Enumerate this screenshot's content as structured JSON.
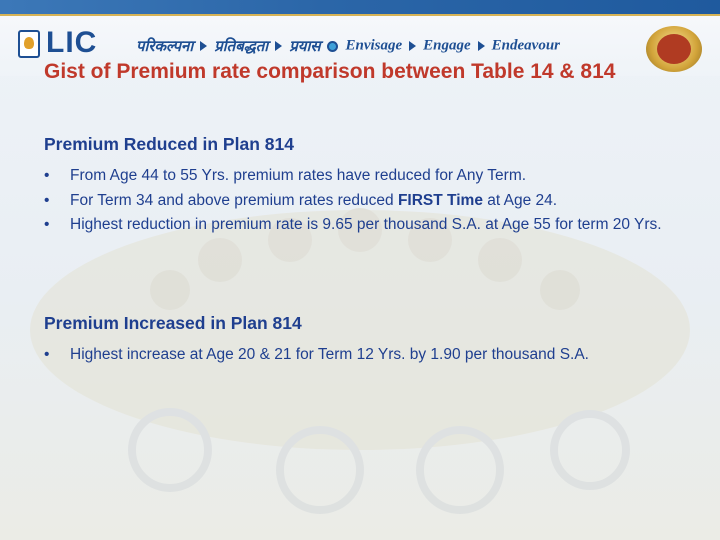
{
  "header": {
    "logo_text": "LIC",
    "tagline": [
      "परिकल्पना",
      "प्रतिबद्धता",
      "प्रयास",
      "Envisage",
      "Engage",
      "Endeavour"
    ],
    "brand_color": "#1e4f93",
    "accent_color": "#c0392b"
  },
  "title": "Gist of Premium rate comparison between Table 14 & 814",
  "sections": [
    {
      "heading": "Premium Reduced in Plan 814",
      "bullets": [
        {
          "pre": "From Age 44 to 55 Yrs. premium rates have reduced for Any Term.",
          "bold": "",
          "post": ""
        },
        {
          "pre": "For Term 34 and above premium rates reduced ",
          "bold": "FIRST Time",
          "post": " at Age 24."
        },
        {
          "pre": "Highest reduction in premium rate is 9.65 per thousand S.A. at Age 55 for term 20 Yrs.",
          "bold": "",
          "post": ""
        }
      ]
    },
    {
      "heading": "Premium Increased in Plan 814",
      "bullets": [
        {
          "pre": "Highest increase at Age 20 & 21 for Term 12 Yrs. by 1.90 per thousand S.A.",
          "bold": "",
          "post": ""
        }
      ]
    }
  ]
}
